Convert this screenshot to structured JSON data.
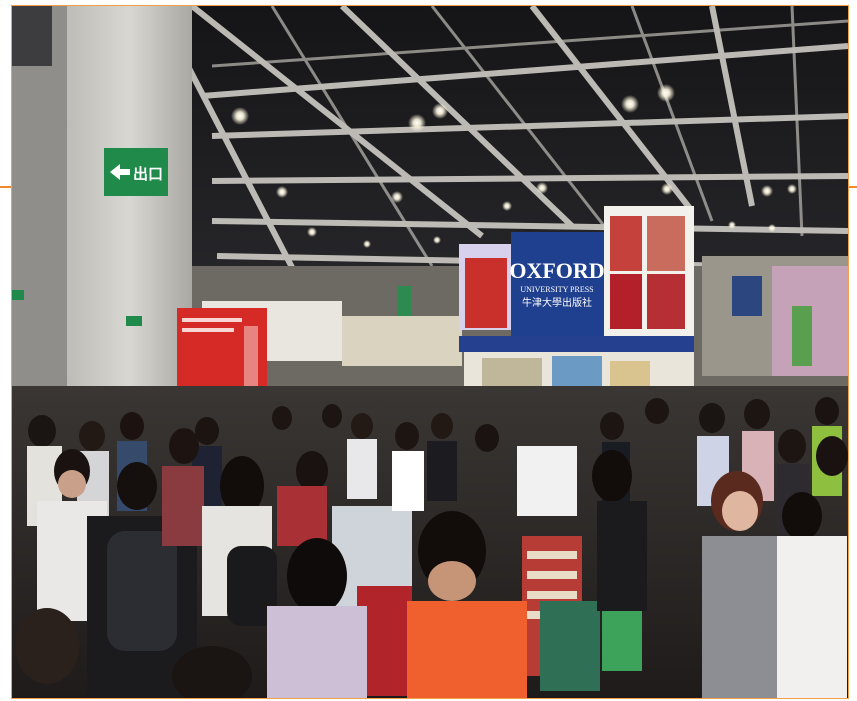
{
  "photo": {
    "booth_brand": "OXFORD",
    "booth_sub": "UNIVERSITY PRESS",
    "booth_cn": "牛津大學出版社",
    "exit_sign_text": "出口",
    "colors": {
      "frame": "#f2a04a",
      "ceiling": "#1a1a1c",
      "booth_blue": "#1f3f8f",
      "red_banner": "#d62a26",
      "exit_green": "#1f8a4a"
    }
  }
}
